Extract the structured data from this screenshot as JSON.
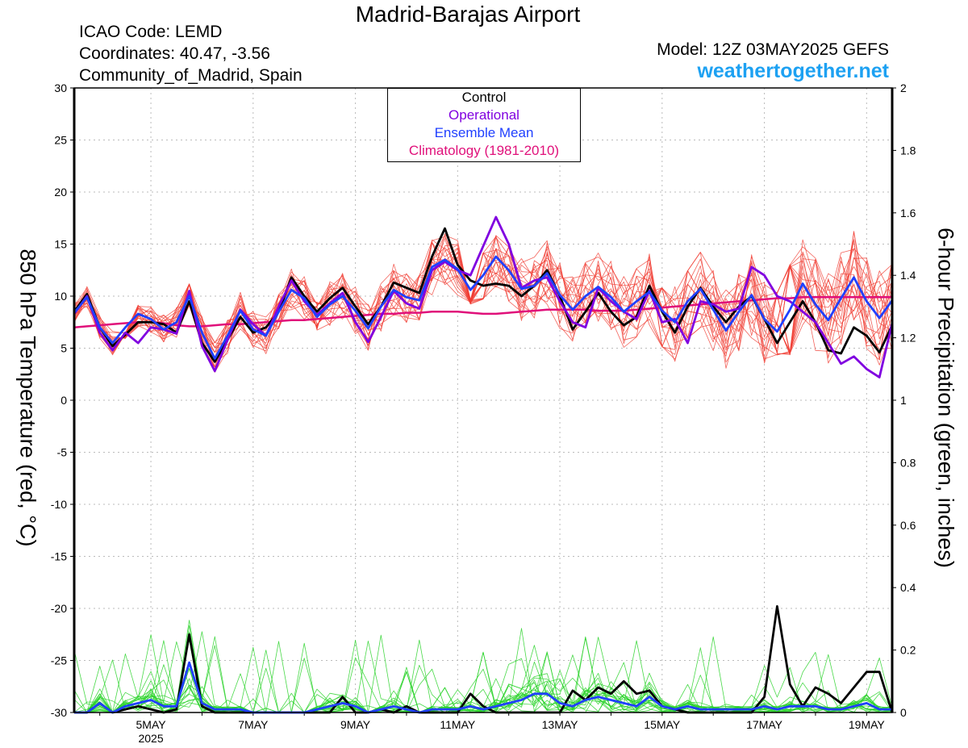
{
  "header": {
    "title": "Madrid-Barajas Airport",
    "icao": "ICAO Code: LEMD",
    "coords": "Coordinates: 40.47, -3.56",
    "region": "Community_of_Madrid, Spain",
    "model": "Model: 12Z 03MAY2025 GEFS",
    "site": "weathertogether.net"
  },
  "colors": {
    "control": "#000000",
    "operational": "#8000e0",
    "ensemble_mean": "#2040ff",
    "climatology": "#e0107a",
    "temp_members": "#f03c32",
    "precip_members": "#28d228",
    "site": "#1da1f2"
  },
  "chart_data": {
    "type": "line",
    "title": "Madrid-Barajas Airport",
    "ylabel": "850 hPa Temperature (red, °C)",
    "y2label": "6-hour Precipitation (green, inches)",
    "ylim": [
      -30,
      30
    ],
    "y2lim": [
      0,
      2
    ],
    "yticks": [
      "30",
      "25",
      "20",
      "15",
      "10",
      "5",
      "0",
      "-5",
      "-10",
      "-15",
      "-20",
      "-25",
      "-30"
    ],
    "y2ticks": [
      "2",
      "1.8",
      "1.6",
      "1.4",
      "1.2",
      "1",
      "0.8",
      "0.6",
      "0.4",
      "0.2",
      "0"
    ],
    "xticks": [
      {
        "day": 5,
        "label": "5MAY",
        "sub": "2025"
      },
      {
        "day": 7,
        "label": "7MAY"
      },
      {
        "day": 9,
        "label": "9MAY"
      },
      {
        "day": 11,
        "label": "11MAY"
      },
      {
        "day": 13,
        "label": "13MAY"
      },
      {
        "day": 15,
        "label": "15MAY"
      },
      {
        "day": 17,
        "label": "17MAY"
      },
      {
        "day": 19,
        "label": "19MAY"
      }
    ],
    "xrange_days": [
      3.5,
      19.5
    ],
    "grid": true,
    "legend": {
      "position": "top-center",
      "entries": [
        {
          "label": "Control",
          "color": "#000000"
        },
        {
          "label": "Operational",
          "color": "#8000e0"
        },
        {
          "label": "Ensemble Mean",
          "color": "#2040ff"
        },
        {
          "label": "Climatology (1981-2010)",
          "color": "#e0107a"
        }
      ]
    },
    "temperature": {
      "x_days": [
        3.5,
        3.75,
        4.0,
        4.25,
        4.5,
        4.75,
        5.0,
        5.25,
        5.5,
        5.75,
        6.0,
        6.25,
        6.5,
        6.75,
        7.0,
        7.25,
        7.5,
        7.75,
        8.0,
        8.25,
        8.5,
        8.75,
        9.0,
        9.25,
        9.5,
        9.75,
        10.0,
        10.25,
        10.5,
        10.75,
        11.0,
        11.25,
        11.5,
        11.75,
        12.0,
        12.25,
        12.5,
        12.75,
        13.0,
        13.25,
        13.5,
        13.75,
        14.0,
        14.25,
        14.5,
        14.75,
        15.0,
        15.25,
        15.5,
        15.75,
        16.0,
        16.25,
        16.5,
        16.75,
        17.0,
        17.25,
        17.5,
        17.75,
        18.0,
        18.25,
        18.5,
        18.75,
        19.0,
        19.25,
        19.5
      ],
      "control": [
        8.5,
        10.2,
        7.0,
        5.2,
        6.3,
        7.5,
        7.5,
        7.3,
        6.5,
        9.5,
        5.5,
        3.7,
        5.8,
        8.0,
        6.5,
        7.0,
        8.5,
        11.8,
        10.0,
        8.5,
        9.8,
        10.8,
        9.0,
        7.3,
        9.0,
        11.3,
        10.8,
        10.3,
        13.8,
        16.5,
        13.0,
        11.5,
        11.0,
        11.2,
        11.0,
        10.0,
        11.0,
        12.5,
        10.0,
        6.8,
        8.5,
        10.3,
        8.5,
        7.2,
        8.0,
        11.0,
        8.5,
        6.5,
        9.0,
        10.8,
        9.0,
        7.5,
        9.0,
        10.0,
        7.8,
        5.5,
        7.5,
        9.5,
        7.5,
        4.8,
        4.5,
        7.0,
        6.2,
        4.6,
        7.2
      ],
      "operational": [
        8.3,
        10.0,
        6.5,
        4.8,
        6.5,
        5.5,
        7.0,
        6.8,
        6.4,
        10.5,
        5.2,
        2.8,
        5.8,
        8.7,
        7.3,
        6.2,
        9.0,
        11.5,
        9.5,
        8.2,
        9.3,
        10.3,
        7.5,
        5.6,
        8.0,
        10.5,
        9.3,
        8.8,
        12.5,
        13.3,
        12.5,
        12.0,
        14.8,
        17.6,
        15.0,
        10.8,
        11.5,
        11.8,
        9.5,
        7.5,
        7.0,
        10.8,
        9.5,
        8.5,
        7.8,
        10.5,
        7.5,
        7.8,
        5.5,
        9.5,
        9.2,
        8.5,
        8.8,
        12.8,
        12.0,
        10.0,
        9.5,
        8.5,
        7.5,
        5.5,
        3.5,
        4.2,
        3.0,
        2.2,
        7.4
      ],
      "ensemble_mean": [
        8.4,
        9.9,
        7.0,
        5.5,
        7.0,
        8.3,
        7.8,
        6.8,
        7.5,
        10.0,
        6.5,
        4.0,
        6.2,
        8.6,
        6.8,
        6.2,
        8.5,
        10.6,
        9.8,
        8.0,
        9.2,
        10.0,
        8.6,
        6.9,
        9.0,
        10.6,
        9.9,
        9.6,
        12.8,
        13.5,
        12.6,
        10.6,
        12.0,
        13.8,
        12.5,
        10.7,
        11.0,
        12.2,
        10.1,
        8.7,
        10.0,
        10.9,
        9.9,
        8.5,
        9.5,
        10.4,
        8.6,
        7.5,
        9.5,
        10.7,
        8.7,
        6.7,
        8.5,
        10.1,
        7.8,
        6.6,
        8.7,
        11.2,
        9.2,
        7.7,
        9.8,
        11.8,
        9.5,
        7.9,
        9.6
      ],
      "climatology": [
        7.0,
        7.1,
        7.2,
        7.3,
        7.4,
        7.5,
        7.5,
        7.4,
        7.2,
        7.1,
        7.1,
        7.2,
        7.3,
        7.3,
        7.4,
        7.5,
        7.6,
        7.7,
        7.7,
        7.8,
        7.9,
        8.0,
        8.1,
        8.2,
        8.3,
        8.3,
        8.4,
        8.4,
        8.5,
        8.5,
        8.5,
        8.4,
        8.3,
        8.3,
        8.4,
        8.5,
        8.6,
        8.7,
        8.7,
        8.7,
        8.7,
        8.6,
        8.6,
        8.6,
        8.7,
        8.8,
        8.9,
        9.0,
        9.1,
        9.2,
        9.3,
        9.4,
        9.5,
        9.6,
        9.7,
        9.8,
        9.8,
        9.9,
        9.9,
        9.9,
        9.9,
        9.9,
        9.9,
        9.9,
        9.9
      ]
    },
    "precipitation": {
      "x_days": [
        3.5,
        3.75,
        4.0,
        4.25,
        4.5,
        4.75,
        5.0,
        5.25,
        5.5,
        5.75,
        6.0,
        6.25,
        6.5,
        6.75,
        7.0,
        7.25,
        7.5,
        7.75,
        8.0,
        8.25,
        8.5,
        8.75,
        9.0,
        9.25,
        9.5,
        9.75,
        10.0,
        10.25,
        10.5,
        10.75,
        11.0,
        11.25,
        11.5,
        11.75,
        12.0,
        12.25,
        12.5,
        12.75,
        13.0,
        13.25,
        13.5,
        13.75,
        14.0,
        14.25,
        14.5,
        14.75,
        15.0,
        15.25,
        15.5,
        15.75,
        16.0,
        16.25,
        16.5,
        16.75,
        17.0,
        17.25,
        17.5,
        17.75,
        18.0,
        18.25,
        18.5,
        18.75,
        19.0,
        19.25,
        19.5
      ],
      "control": [
        0,
        0,
        0.03,
        0,
        0.01,
        0.02,
        0.01,
        0,
        0.01,
        0.25,
        0.02,
        0,
        0,
        0,
        0,
        0,
        0,
        0,
        0,
        0,
        0,
        0.05,
        0,
        0,
        0.01,
        0,
        0.02,
        0,
        0,
        0,
        0,
        0.06,
        0.02,
        0,
        0,
        0,
        0,
        0,
        0,
        0.07,
        0.04,
        0.08,
        0.06,
        0.1,
        0.06,
        0.07,
        0.02,
        0.01,
        0,
        0,
        0,
        0,
        0,
        0,
        0.05,
        0.34,
        0.09,
        0.02,
        0.08,
        0.06,
        0.03,
        0.08,
        0.13,
        0.13,
        0
      ],
      "operational": [
        0,
        0,
        0.01,
        0,
        0.01,
        0.02,
        0.02,
        0.01,
        0.01,
        0.14,
        0.03,
        0,
        0.01,
        0,
        0,
        0,
        0,
        0,
        0.01,
        0.01,
        0.02,
        0.03,
        0.02,
        0,
        0.01,
        0.02,
        0.01,
        0,
        0.01,
        0.01,
        0.01,
        0.02,
        0.01,
        0.02,
        0.03,
        0.04,
        0.05,
        0.05,
        0.04,
        0.03,
        0.04,
        0.05,
        0.04,
        0.03,
        0.02,
        0.05,
        0.02,
        0.01,
        0.02,
        0.01,
        0.01,
        0.01,
        0.01,
        0.01,
        0.02,
        0.01,
        0.02,
        0.02,
        0.02,
        0.01,
        0.01,
        0.02,
        0.03,
        0.01,
        0.01
      ],
      "ensemble_mean": [
        0,
        0,
        0.03,
        0,
        0.02,
        0.03,
        0.04,
        0.02,
        0.02,
        0.16,
        0.03,
        0.01,
        0.01,
        0.01,
        0,
        0,
        0,
        0,
        0,
        0.01,
        0.02,
        0.03,
        0.02,
        0,
        0.01,
        0.02,
        0.01,
        0,
        0.01,
        0.01,
        0.01,
        0.02,
        0.01,
        0.02,
        0.03,
        0.04,
        0.06,
        0.06,
        0.03,
        0.02,
        0.04,
        0.05,
        0.04,
        0.03,
        0.02,
        0.05,
        0.02,
        0.01,
        0.02,
        0.01,
        0.01,
        0.01,
        0.01,
        0.01,
        0.02,
        0.01,
        0.02,
        0.02,
        0.02,
        0.01,
        0.01,
        0.02,
        0.03,
        0.01,
        0.01
      ]
    }
  }
}
